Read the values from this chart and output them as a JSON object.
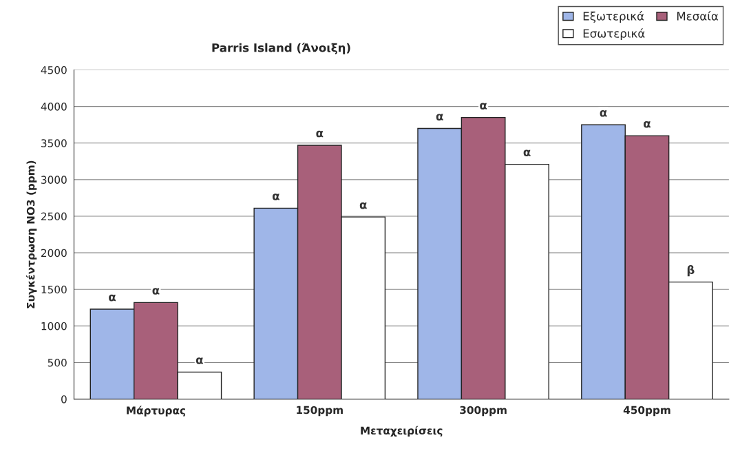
{
  "chart_data": {
    "type": "bar",
    "title": "Parris Island (Άνοιξη)",
    "xlabel": "Μεταχειρίσεις",
    "ylabel": "Συγκέντρωση NO3 (ppm)",
    "categories": [
      "Μάρτυρας",
      "150ppm",
      "300ppm",
      "450ppm"
    ],
    "series": [
      {
        "name": "Εξωτερικά",
        "color": "#9fb6e8",
        "values": [
          1230,
          2610,
          3700,
          3750
        ],
        "value_labels": [
          "α",
          "α",
          "α",
          "α"
        ]
      },
      {
        "name": "Μεσαία",
        "color": "#a8607a",
        "values": [
          1320,
          3470,
          3850,
          3600
        ],
        "value_labels": [
          "α",
          "α",
          "α",
          "α"
        ]
      },
      {
        "name": "Εσωτερικά",
        "color": "#ffffff",
        "values": [
          370,
          2490,
          3210,
          1600
        ],
        "value_labels": [
          "α",
          "α",
          "α",
          "β"
        ]
      }
    ],
    "ylim": [
      0,
      4500
    ],
    "yticks": [
      0,
      500,
      1000,
      1500,
      2000,
      2500,
      3000,
      3500,
      4000,
      4500
    ],
    "grid": "y",
    "legend": "top right"
  }
}
